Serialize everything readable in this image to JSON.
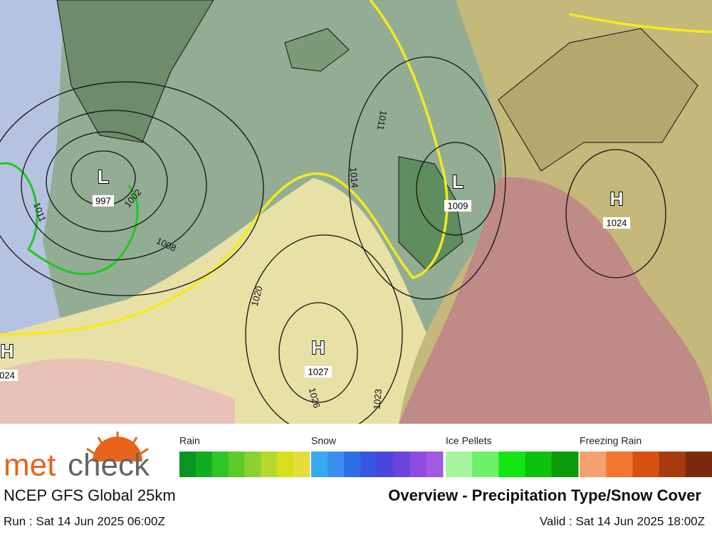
{
  "logo": {
    "met": "met",
    "check": "check"
  },
  "model": "NCEP GFS Global 25km",
  "title": "Overview - Precipitation Type/Snow Cover",
  "run": "Run : Sat 14 Jun 2025 06:00Z",
  "valid": "Valid : Sat 14 Jun 2025 18:00Z",
  "legend": [
    {
      "label": "Rain",
      "colors": [
        "#0b9424",
        "#10ad20",
        "#2ec526",
        "#5acb2a",
        "#8bd132",
        "#b5d92c",
        "#d6df1c",
        "#e6dc3a"
      ]
    },
    {
      "label": "Snow",
      "colors": [
        "#38aaf0",
        "#3b8ff0",
        "#2f6fe6",
        "#3a55e0",
        "#4a45dc",
        "#6a44dc",
        "#8f4ce0",
        "#a35ae0"
      ]
    },
    {
      "label": "Ice Pellets",
      "colors": [
        "#a8f5a0",
        "#6df06a",
        "#12e612",
        "#0cc20c",
        "#0a9a0a"
      ]
    },
    {
      "label": "Freezing Rain",
      "colors": [
        "#f4a070",
        "#f07830",
        "#d85010",
        "#a83a10",
        "#7a2a0c"
      ]
    }
  ],
  "pressure_centers": [
    {
      "symbol": "L",
      "value": "997"
    },
    {
      "symbol": "L",
      "value": "1009"
    },
    {
      "symbol": "H",
      "value": "1024"
    },
    {
      "symbol": "H",
      "value": "1027"
    },
    {
      "symbol": "H",
      "value": "024"
    }
  ],
  "isobars": [
    "1011",
    "1002",
    "1008",
    "1014",
    "1011",
    "1020",
    "1026",
    "1023"
  ]
}
